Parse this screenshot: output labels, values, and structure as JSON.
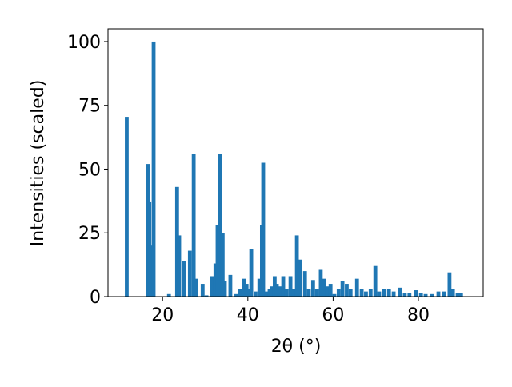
{
  "chart_data": {
    "type": "bar",
    "xlabel": "2θ (°)",
    "ylabel": "Intensities (scaled)",
    "color": "#1f77b4",
    "x": [
      11.6,
      16.6,
      16.9,
      17.2,
      17.9,
      21.5,
      23.4,
      23.9,
      25.1,
      26.4,
      27.3,
      27.9,
      29.4,
      30.3,
      31.6,
      32.4,
      32.9,
      33.5,
      34.1,
      34.6,
      35.9,
      37.3,
      38.2,
      39.1,
      39.7,
      40.3,
      40.8,
      41.8,
      42.7,
      43.3,
      43.6,
      44.4,
      45.1,
      45.7,
      46.3,
      46.8,
      47.6,
      48.3,
      49.1,
      50.0,
      50.8,
      51.5,
      52.3,
      53.4,
      54.3,
      55.3,
      56.2,
      57.1,
      57.9,
      58.6,
      59.4,
      60.3,
      61.3,
      62.2,
      63.2,
      64.1,
      65.6,
      66.7,
      67.7,
      68.8,
      69.9,
      70.8,
      72.0,
      73.1,
      74.2,
      75.7,
      76.8,
      77.9,
      79.4,
      80.6,
      81.7,
      83.2,
      84.7,
      86.0,
      87.3,
      88.1,
      89.2,
      90.0
    ],
    "values": [
      70.5,
      52,
      37,
      20,
      100,
      1,
      43,
      24,
      14,
      18,
      56,
      7,
      5,
      0.5,
      8,
      13,
      28,
      56,
      25,
      6,
      8.5,
      1,
      3,
      7,
      5,
      3,
      18.5,
      2,
      7,
      28,
      52.5,
      2,
      3,
      4,
      8,
      5,
      4,
      8,
      3,
      8,
      3,
      24,
      14.5,
      10,
      3,
      6.5,
      3,
      10.5,
      7,
      4,
      5,
      1,
      3,
      6,
      5,
      3,
      7,
      3,
      2,
      3,
      12,
      2,
      3,
      3,
      2,
      3.5,
      1.5,
      1.5,
      2.5,
      1.5,
      1,
      1,
      2,
      2,
      9.5,
      3,
      1.5,
      1.5
    ],
    "xlim": [
      7.2,
      95.2
    ],
    "ylim": [
      0,
      105
    ],
    "xticks": [
      20,
      40,
      60,
      80
    ],
    "yticks": [
      0,
      25,
      50,
      75,
      100
    ]
  }
}
